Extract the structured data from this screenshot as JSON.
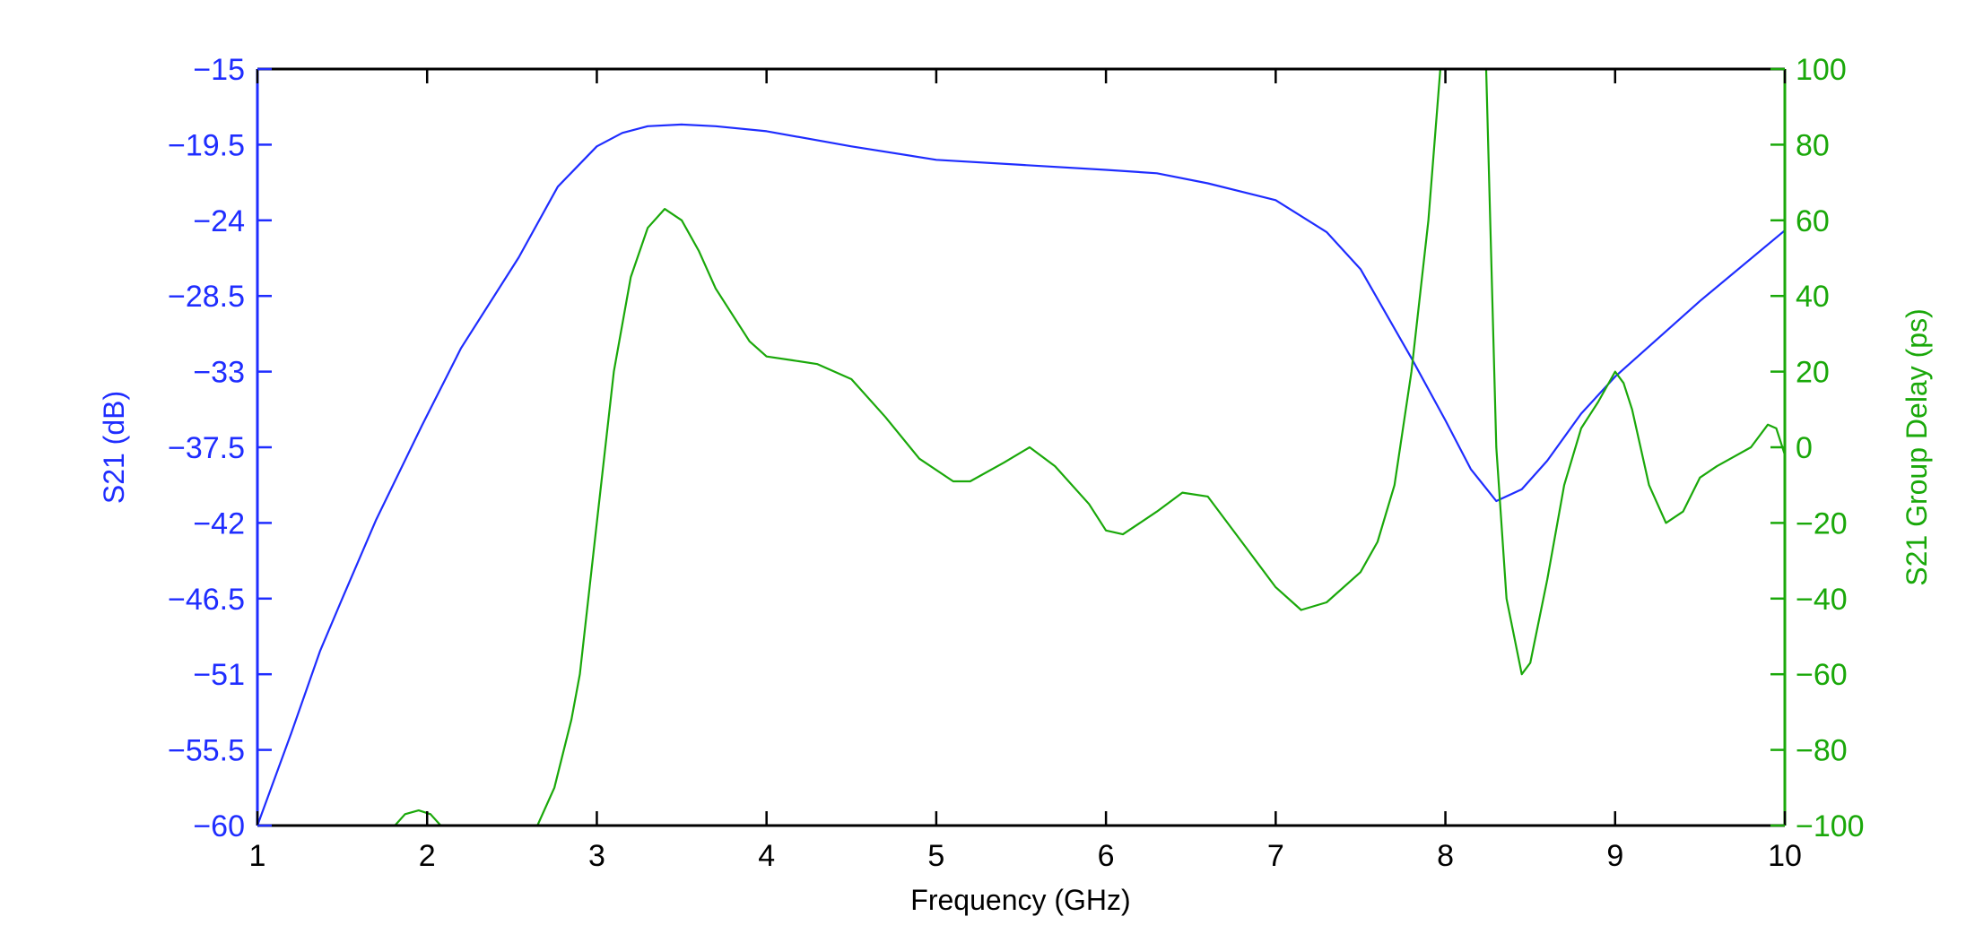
{
  "chart_data": {
    "type": "line",
    "xlabel": "Frequency (GHz)",
    "xlim": [
      1,
      10
    ],
    "xticks": [
      1,
      2,
      3,
      4,
      5,
      6,
      7,
      8,
      9,
      10
    ],
    "left_axis": {
      "label": "S21 (dB)",
      "ylim": [
        -60,
        -15
      ],
      "ticks": [
        "-15",
        "-19.5",
        "-24",
        "-28.5",
        "-33",
        "-37.5",
        "-42",
        "-46.5",
        "-51",
        "-55.5",
        "-60"
      ],
      "color": "#1f2dff"
    },
    "right_axis": {
      "label": "S21 Group Delay (ps)",
      "ylim": [
        -100,
        100
      ],
      "ticks": [
        "100",
        "80",
        "60",
        "40",
        "20",
        "0",
        "-20",
        "-40",
        "-60",
        "-80",
        "-100"
      ],
      "color": "#1aa80a"
    },
    "grid": false,
    "series": [
      {
        "name": "S21 (dB)",
        "axis": "left",
        "color": "#1f2dff",
        "x": [
          1.0,
          1.2,
          1.37,
          1.5,
          1.7,
          1.97,
          2.2,
          2.54,
          2.77,
          3.0,
          3.15,
          3.3,
          3.5,
          3.7,
          4.0,
          4.5,
          5.0,
          5.5,
          6.0,
          6.3,
          6.6,
          7.0,
          7.3,
          7.5,
          7.8,
          8.0,
          8.15,
          8.3,
          8.45,
          8.6,
          8.8,
          9.0,
          9.5,
          10.0
        ],
        "y": [
          -60.0,
          -54.5,
          -49.6,
          -46.5,
          -41.8,
          -36.2,
          -31.6,
          -26.2,
          -22.0,
          -19.6,
          -18.8,
          -18.4,
          -18.3,
          -18.4,
          -18.7,
          -19.6,
          -20.4,
          -20.7,
          -21.0,
          -21.2,
          -21.8,
          -22.8,
          -24.7,
          -26.9,
          -32.2,
          -35.9,
          -38.8,
          -40.7,
          -40.0,
          -38.3,
          -35.5,
          -33.3,
          -28.8,
          -24.6
        ]
      },
      {
        "name": "S21 Group Delay (ps)",
        "axis": "right",
        "color": "#1aa80a",
        "x": [
          1.81,
          1.87,
          1.95,
          2.02,
          2.08,
          2.65,
          2.75,
          2.85,
          2.9,
          3.0,
          3.1,
          3.2,
          3.3,
          3.4,
          3.5,
          3.6,
          3.7,
          3.8,
          3.9,
          4.0,
          4.15,
          4.3,
          4.5,
          4.7,
          4.9,
          5.1,
          5.2,
          5.4,
          5.55,
          5.7,
          5.9,
          6.0,
          6.1,
          6.3,
          6.45,
          6.6,
          6.8,
          7.0,
          7.15,
          7.3,
          7.5,
          7.6,
          7.7,
          7.8,
          7.9,
          7.97,
          8.24,
          8.3,
          8.36,
          8.45,
          8.5,
          8.6,
          8.7,
          8.8,
          8.9,
          9.0,
          9.05,
          9.1,
          9.2,
          9.3,
          9.4,
          9.5,
          9.6,
          9.8,
          9.9,
          9.95,
          10.0
        ],
        "y": [
          -100,
          -97,
          -96,
          -97,
          -100,
          -100,
          -90,
          -72,
          -60,
          -20,
          20,
          45,
          58,
          63,
          60,
          52,
          42,
          35,
          28,
          24,
          23,
          22,
          18,
          8,
          -3,
          -9,
          -9,
          -4,
          0,
          -5,
          -15,
          -22,
          -23,
          -17,
          -12,
          -13,
          -25,
          -37,
          -43,
          -41,
          -33,
          -25,
          -10,
          20,
          60,
          100,
          100,
          0,
          -40,
          -60,
          -57,
          -35,
          -10,
          5,
          12,
          20,
          17,
          10,
          -10,
          -20,
          -17,
          -8,
          -5,
          0,
          6,
          5,
          -2
        ]
      }
    ]
  }
}
